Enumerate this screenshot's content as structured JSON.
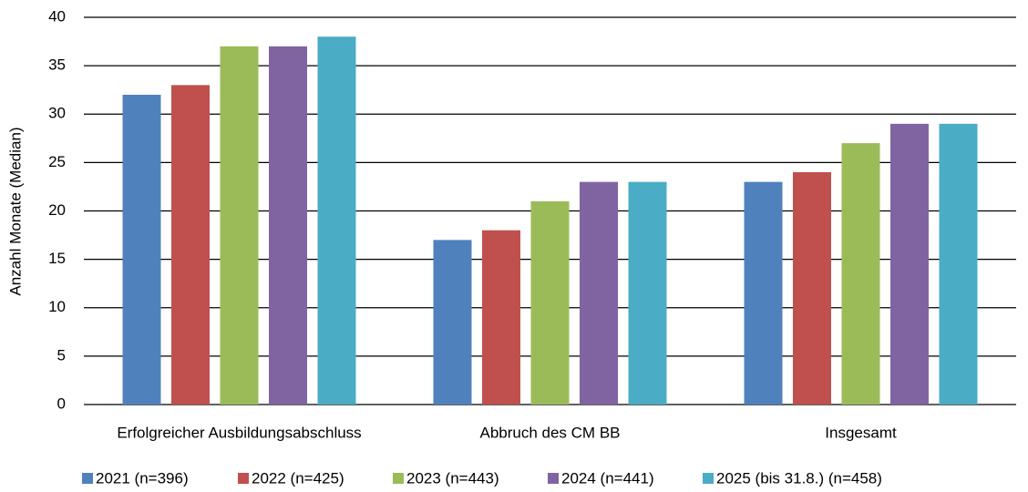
{
  "chart_data": {
    "type": "bar",
    "y_label": "Anzahl Monate (Median)",
    "categories": [
      "Erfolgreicher Ausbildungsabschluss",
      "Abbruch des CM BB",
      "Insgesamt"
    ],
    "series": [
      {
        "name": "2021 (n=396)",
        "color": "#4f81bd",
        "values": [
          32,
          17,
          23
        ]
      },
      {
        "name": "2022 (n=425)",
        "color": "#c0504d",
        "values": [
          33,
          18,
          24
        ]
      },
      {
        "name": "2023 (n=443)",
        "color": "#9bbb59",
        "values": [
          37,
          21,
          27
        ]
      },
      {
        "name": "2024 (n=441)",
        "color": "#8064a2",
        "values": [
          37,
          23,
          29
        ]
      },
      {
        "name": "2025 (bis 31.8.) (n=458)",
        "color": "#4bacc6",
        "values": [
          38,
          23,
          29
        ]
      }
    ],
    "ylim": [
      0,
      40
    ],
    "yticks": [
      0,
      5,
      10,
      15,
      20,
      25,
      30,
      35,
      40
    ],
    "grid": true,
    "legend": "bottom"
  }
}
